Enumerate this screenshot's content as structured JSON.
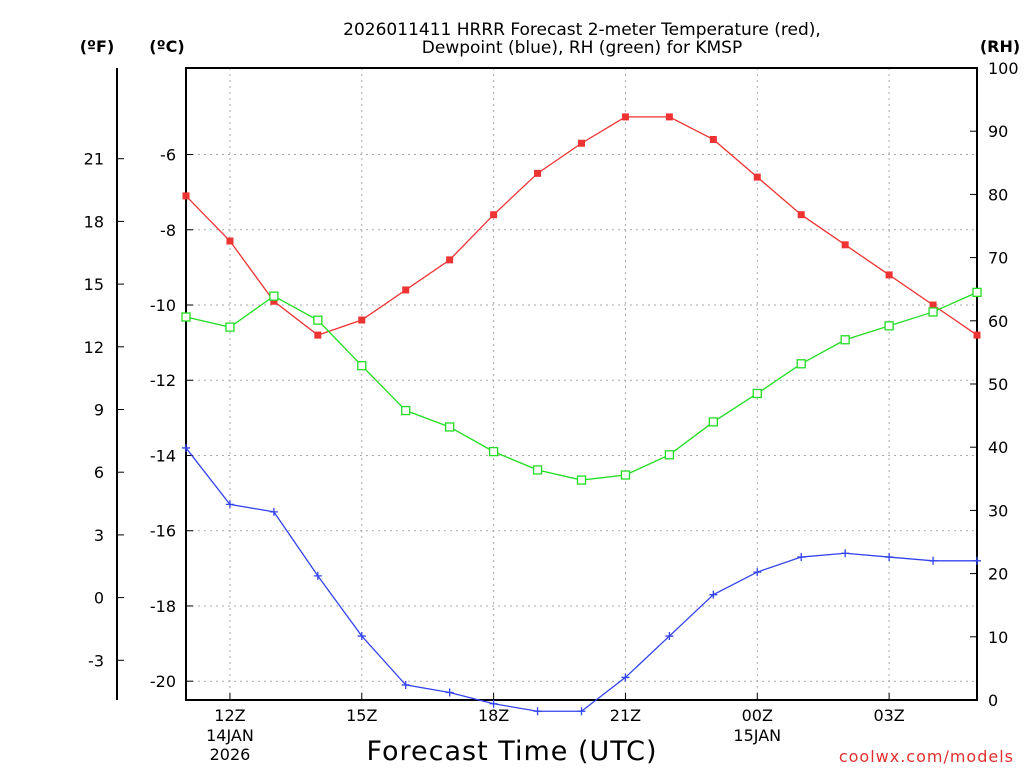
{
  "chart_data": {
    "type": "line",
    "title_line1": "2026011411 HRRR Forecast 2-meter Temperature (red),",
    "title_line2": "Dewpoint (blue), RH (green) for KMSP",
    "xlabel": "Forecast Time (UTC)",
    "watermark": "coolwx.com/models",
    "unit_f": "(ºF)",
    "unit_c": "(ºC)",
    "unit_rh": "(RH)",
    "x_ticks": [
      {
        "h": 1,
        "label": "12Z",
        "sub1": "14JAN",
        "sub2": "2026"
      },
      {
        "h": 4,
        "label": "15Z",
        "sub1": "",
        "sub2": ""
      },
      {
        "h": 7,
        "label": "18Z",
        "sub1": "",
        "sub2": ""
      },
      {
        "h": 10,
        "label": "21Z",
        "sub1": "",
        "sub2": ""
      },
      {
        "h": 13,
        "label": "00Z",
        "sub1": "15JAN",
        "sub2": ""
      },
      {
        "h": 16,
        "label": "03Z",
        "sub1": "",
        "sub2": ""
      }
    ],
    "xlim": [
      0,
      18
    ],
    "ylim_c": [
      -20.5,
      -3.7
    ],
    "y_ticks_c": [
      "-20",
      "-18",
      "-16",
      "-14",
      "-12",
      "-10",
      "-8",
      "-6"
    ],
    "y_ticks_f": [
      "-3",
      "0",
      "3",
      "6",
      "9",
      "12",
      "15",
      "18",
      "21"
    ],
    "ylim_rh": [
      0,
      100
    ],
    "y_ticks_rh": [
      "0",
      "10",
      "20",
      "30",
      "40",
      "50",
      "60",
      "70",
      "80",
      "90",
      "100"
    ],
    "series": [
      {
        "name": "Temperature",
        "axis": "c",
        "color": "#ee3333",
        "marker": "filled-square",
        "values": [
          -7.1,
          -8.3,
          -9.9,
          -10.8,
          -10.4,
          -9.6,
          -8.8,
          -7.6,
          -6.5,
          -5.7,
          -5.0,
          -5.0,
          -5.6,
          -6.6,
          -7.6,
          -8.4,
          -9.2,
          -10.0,
          -10.8
        ]
      },
      {
        "name": "Dewpoint",
        "axis": "c",
        "color": "#3344ee",
        "marker": "plus",
        "values": [
          -13.8,
          -15.3,
          -15.5,
          -17.2,
          -18.8,
          -20.1,
          -20.3,
          -20.6,
          -20.8,
          -20.8,
          -19.9,
          -18.8,
          -17.7,
          -17.1,
          -16.7,
          -16.6,
          -16.7,
          -16.8,
          -16.8
        ]
      },
      {
        "name": "RH",
        "axis": "rh",
        "color": "#22dd22",
        "marker": "open-square",
        "values": [
          60.6,
          59.0,
          63.9,
          60.1,
          52.9,
          45.8,
          43.2,
          39.3,
          36.4,
          34.8,
          35.6,
          38.8,
          44.0,
          48.5,
          53.2,
          57.0,
          59.2,
          61.4,
          64.5
        ]
      }
    ]
  }
}
